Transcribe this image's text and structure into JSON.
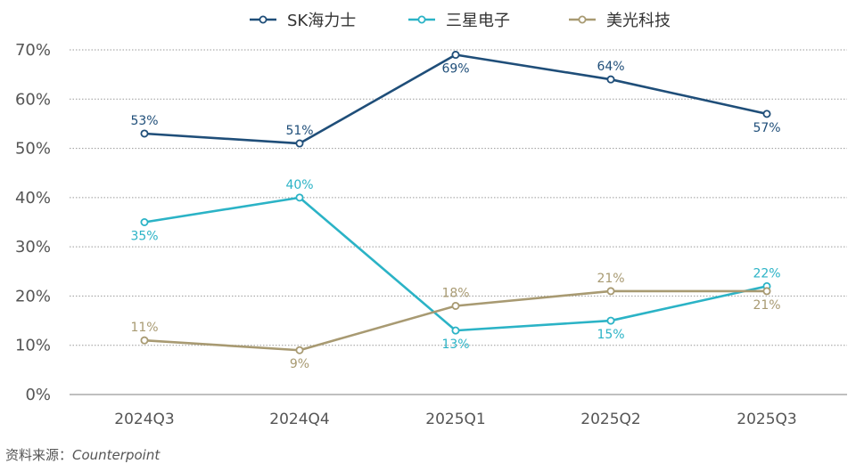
{
  "chart_data": {
    "type": "line",
    "categories": [
      "2024Q3",
      "2024Q4",
      "2025Q1",
      "2025Q2",
      "2025Q3"
    ],
    "y_ticks": [
      "0%",
      "10%",
      "20%",
      "30%",
      "40%",
      "50%",
      "60%",
      "70%"
    ],
    "ylim": [
      0,
      70
    ],
    "grid": true,
    "legend_position": "top-center",
    "series": [
      {
        "name": "SK海力士",
        "color": "#1f4e79",
        "values": [
          53,
          51,
          69,
          64,
          57
        ],
        "labels": [
          "53%",
          "51%",
          "69%",
          "64%",
          "57%"
        ],
        "label_side": [
          "above",
          "above",
          "below",
          "above",
          "below"
        ]
      },
      {
        "name": "三星电子",
        "color": "#2bb3c6",
        "values": [
          35,
          40,
          13,
          15,
          22
        ],
        "labels": [
          "35%",
          "40%",
          "13%",
          "15%",
          "22%"
        ],
        "label_side": [
          "below",
          "above",
          "below",
          "below",
          "above"
        ]
      },
      {
        "name": "美光科技",
        "color": "#a89a72",
        "values": [
          11,
          9,
          18,
          21,
          21
        ],
        "labels": [
          "11%",
          "9%",
          "18%",
          "21%",
          "21%"
        ],
        "label_side": [
          "above",
          "below",
          "above",
          "above",
          "below"
        ]
      }
    ]
  },
  "source": {
    "prefix": "资料来源：",
    "name": "Counterpoint"
  }
}
